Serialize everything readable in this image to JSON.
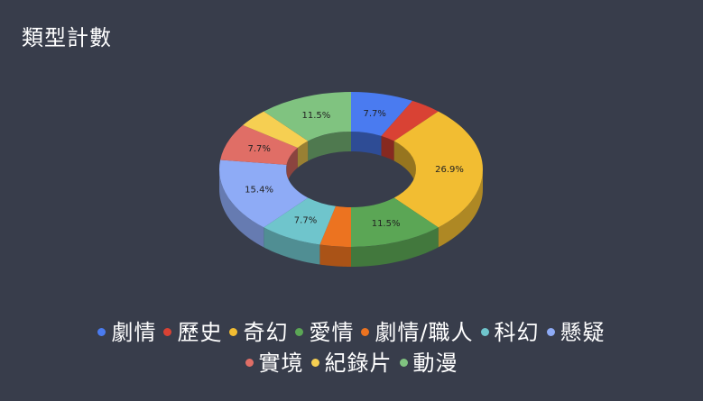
{
  "chart_data": {
    "type": "pie",
    "title": "類型計數",
    "donut": true,
    "three_d": true,
    "legend_position": "bottom",
    "categories": [
      "劇情",
      "歷史",
      "奇幻",
      "愛情",
      "劇情/職人",
      "科幻",
      "懸疑",
      "實境",
      "紀錄片",
      "動漫"
    ],
    "values": [
      7.7,
      3.8,
      26.9,
      11.5,
      3.8,
      7.7,
      15.4,
      7.7,
      3.8,
      11.5
    ],
    "labels": [
      "7.7%",
      "",
      "26.9%",
      "11.5%",
      "",
      "7.7%",
      "15.4%",
      "7.7%",
      "",
      "11.5%"
    ],
    "colors": [
      "#4a7bf0",
      "#d94234",
      "#f2bd32",
      "#5ba655",
      "#ec7320",
      "#6fc5cc",
      "#8eabf6",
      "#e06e66",
      "#f6cf52",
      "#80c380"
    ]
  }
}
